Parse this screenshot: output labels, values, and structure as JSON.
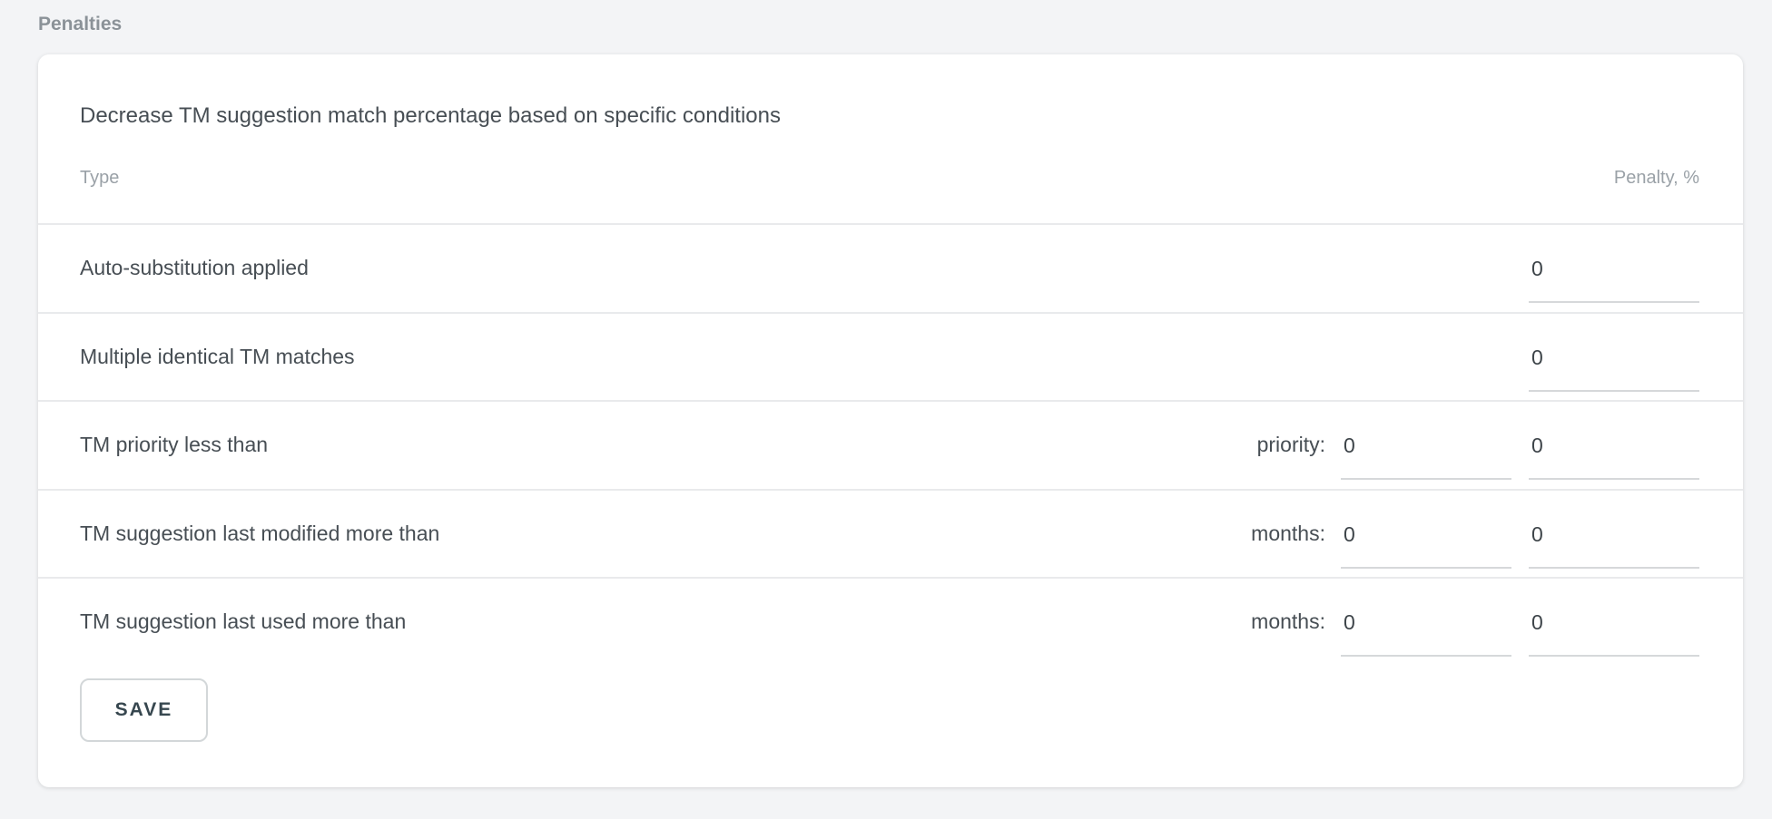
{
  "page": {
    "heading": "Penalties"
  },
  "card": {
    "title": "Decrease TM suggestion match percentage based on specific conditions",
    "columns": {
      "type": "Type",
      "penalty": "Penalty, %"
    },
    "rows": [
      {
        "label": "Auto-substitution applied",
        "penalty_value": "0"
      },
      {
        "label": "Multiple identical TM matches",
        "penalty_value": "0"
      },
      {
        "label": "TM priority less than",
        "condition_label": "priority:",
        "condition_value": "0",
        "penalty_value": "0"
      },
      {
        "label": "TM suggestion last modified more than",
        "condition_label": "months:",
        "condition_value": "0",
        "penalty_value": "0"
      },
      {
        "label": "TM suggestion last used more than",
        "condition_label": "months:",
        "condition_value": "0",
        "penalty_value": "0"
      }
    ],
    "save_label": "SAVE"
  },
  "colors": {
    "page_background": "#f3f4f6",
    "card_background": "#ffffff",
    "heading_text": "#8b9298",
    "primary_text": "#474e54",
    "muted_header_text": "#9aa1a7",
    "divider": "#e9eaec",
    "input_underline": "#d6d8da",
    "save_button_border": "#d3d7d9",
    "save_button_text": "#37474f"
  }
}
